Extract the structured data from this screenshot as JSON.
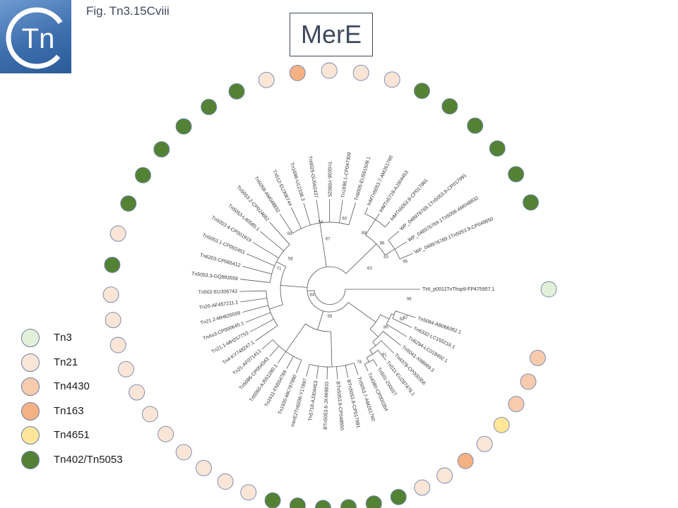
{
  "header": {
    "fig_label": "Fig. Tn3.15Cviii",
    "title": "MerE",
    "logo_text": "Tn"
  },
  "colors": {
    "Tn3": "#e2f0d9",
    "Tn21": "#fbe5d6",
    "Tn4430": "#f8cbad",
    "Tn163": "#f4b183",
    "Tn4651": "#ffe699",
    "Tn402/Tn5053": "#548235"
  },
  "legend": [
    {
      "label": "Tn3",
      "group": "Tn3"
    },
    {
      "label": "Tn21",
      "group": "Tn21"
    },
    {
      "label": "Tn4430",
      "group": "Tn4430"
    },
    {
      "label": "Tn163",
      "group": "Tn163"
    },
    {
      "label": "Tn4651",
      "group": "Tn4651"
    },
    {
      "label": "Tn402/Tn5053",
      "group": "Tn402/Tn5053"
    }
  ],
  "leaves": [
    {
      "label": "THI_p0011TnThsp9-FP475957.1",
      "group": "Tn3"
    },
    {
      "label": "Tn5084-AB066362.1",
      "group": "Tn4430"
    },
    {
      "label": "Tn6332-LC155216.1",
      "group": "Tn4430"
    },
    {
      "label": "Tn6294-LC018492.1",
      "group": "Tn4430"
    },
    {
      "label": "Tn5041-X98999.3",
      "group": "Tn4651"
    },
    {
      "label": "Tn4378-CP000356",
      "group": "Tn21"
    },
    {
      "label": "Tn511-EU287476.1",
      "group": "Tn163"
    },
    {
      "label": "Tn501-Z00027",
      "group": "Tn21"
    },
    {
      "label": "Tn4380-CP000354",
      "group": "Tn21"
    },
    {
      "label": "Tn5053.7-AM261760",
      "group": "Tn402/Tn5053"
    },
    {
      "label": "BTn5053.8-CP017991",
      "group": "Tn402/Tn5053"
    },
    {
      "label": "BTn5053.9-CP048650",
      "group": "Tn402/Tn5053"
    },
    {
      "label": "BTn5053.6-JX469833",
      "group": "Tn402/Tn5053"
    },
    {
      "label": "Tn5718-AJ304453",
      "group": "Tn402/Tn5053"
    },
    {
      "label": "merE2Tn5036-Y17897",
      "group": "Tn402/Tn5053"
    },
    {
      "label": "Tn1935-MK797990",
      "group": "Tn21"
    },
    {
      "label": "Tn2411-FN554766",
      "group": "Tn21"
    },
    {
      "label": "Tn5060-AJ551280.1",
      "group": "Tn21"
    },
    {
      "label": "Tn5086-CP054343",
      "group": "Tn21"
    },
    {
      "label": "Tn21-AF071413",
      "group": "Tn21"
    },
    {
      "label": "Tn4-KY748247.1",
      "group": "Tn21"
    },
    {
      "label": "Tn21.1-MH257753",
      "group": "Tn21"
    },
    {
      "label": "TnAs3-CP000645.1",
      "group": "Tn21"
    },
    {
      "label": "Tn21.2-MH626558",
      "group": "Tn21"
    },
    {
      "label": "Tn20-AF457211.1",
      "group": "Tn21"
    },
    {
      "label": "Tn502-EU306743",
      "group": "Tn21"
    },
    {
      "label": "Tn5053.3-GQ983559",
      "group": "Tn402/Tn5053"
    },
    {
      "label": "Tn6203-CP065412",
      "group": "Tn21"
    },
    {
      "label": "Tn5053.1-CP002451",
      "group": "Tn402/Tn5053"
    },
    {
      "label": "Tn5053.4-CP001919",
      "group": "Tn402/Tn5053"
    },
    {
      "label": "Tn5053-L40585.1",
      "group": "Tn402/Tn5053"
    },
    {
      "label": "Tn5053.2-CP024682",
      "group": "Tn402/Tn5053"
    },
    {
      "label": "Tn5058-AM048832",
      "group": "Tn402/Tn5053"
    },
    {
      "label": "Tn512-EU306744",
      "group": "Tn402/Tn5053"
    },
    {
      "label": "Tn1696-U12338.3",
      "group": "Tn21"
    },
    {
      "label": "Tn6025-GU562437",
      "group": "Tn163"
    },
    {
      "label": "Tn5036-Y09025",
      "group": "Tn21"
    },
    {
      "label": "Tn1696.1-CP047309",
      "group": "Tn21"
    },
    {
      "label": "Tn6005-EU591509.1",
      "group": "Tn21"
    },
    {
      "label": "InMTn5053.7-AM261760",
      "group": "Tn402/Tn5053"
    },
    {
      "label": "InMTn5718-AJ304453",
      "group": "Tn402/Tn5053"
    },
    {
      "label": "InMTn5053.8-CP017991",
      "group": "Tn402/Tn5053"
    },
    {
      "label": "WP_048976769.1Tn5053.8-CP017991",
      "group": "Tn402/Tn5053"
    },
    {
      "label": "WP_048976769.1Tn5058-AM048832",
      "group": "Tn402/Tn5053"
    },
    {
      "label": "WP_048976769.1Tn5053.9-CP048650",
      "group": "Tn402/Tn5053"
    }
  ],
  "bootstrap": [
    "98",
    "92",
    "91",
    "59",
    "63",
    "67",
    "54",
    "60",
    "93",
    "84",
    "71",
    "56",
    "89",
    "96",
    "53",
    "95",
    "87",
    "86",
    "78"
  ]
}
